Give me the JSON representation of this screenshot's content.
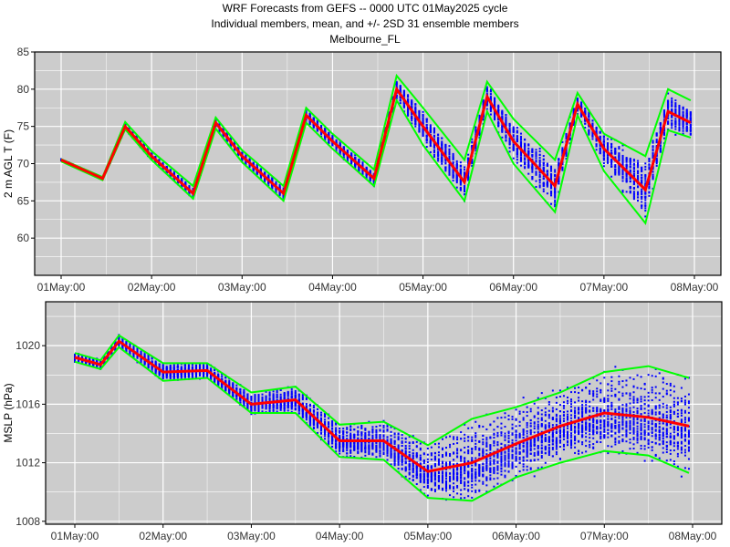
{
  "header": {
    "line1": "WRF Forecasts from GEFS --  0000 UTC 01May2025  cycle",
    "line2": "Individual members, mean, and +/- 2SD    31 ensemble members",
    "line3": "Melbourne_FL"
  },
  "colors": {
    "panel_bg": "#cccccc",
    "grid": "#ffffff",
    "members": "#0000ff",
    "mean": "#ff0000",
    "sd": "#00ff00"
  },
  "chart_data": [
    {
      "type": "line",
      "title": "",
      "xlabel": "",
      "ylabel": "2 m AGL T (F)",
      "x_ticks": [
        "01May:00",
        "02May:00",
        "03May:00",
        "04May:00",
        "05May:00",
        "06May:00",
        "07May:00",
        "08May:00"
      ],
      "y_ticks": [
        60,
        65,
        70,
        75,
        80,
        85
      ],
      "ylim": [
        55,
        85
      ],
      "grid": true,
      "member_count": 31,
      "times": [
        "01May:00",
        "01May:11",
        "01May:17",
        "02May:00",
        "02May:11",
        "02May:17",
        "03May:00",
        "03May:11",
        "03May:17",
        "04May:00",
        "04May:11",
        "04May:17",
        "05May:00",
        "05May:11",
        "05May:17",
        "06May:00",
        "06May:11",
        "06May:17",
        "07May:00",
        "07May:11",
        "07May:17",
        "07May:23"
      ],
      "series": [
        {
          "name": "",
          "role": "mean",
          "values": [
            70.5,
            68,
            75,
            71,
            66,
            75.5,
            71,
            66,
            76.5,
            73,
            68,
            80,
            75,
            67.5,
            79,
            73,
            67,
            78,
            72,
            66.5,
            77,
            75.5
          ]
        },
        {
          "name": "",
          "role": "upper",
          "values": [
            70.6,
            68.2,
            75.6,
            71.7,
            67,
            76.2,
            71.8,
            67,
            77.5,
            74,
            69.2,
            81.8,
            77.5,
            70.5,
            81,
            76,
            70.5,
            79.5,
            74,
            71,
            80,
            78.5
          ]
        },
        {
          "name": "",
          "role": "lower",
          "values": [
            70.3,
            67.8,
            74.6,
            70.5,
            65.3,
            74.7,
            70.2,
            65,
            75.5,
            72,
            67,
            78.5,
            72.5,
            65,
            77,
            70,
            63.5,
            76.5,
            69,
            62,
            74.5,
            73.5
          ]
        }
      ]
    },
    {
      "type": "line",
      "title": "",
      "xlabel": "",
      "ylabel": "MSLP (hPa)",
      "x_ticks": [
        "01May:00",
        "02May:00",
        "03May:00",
        "04May:00",
        "05May:00",
        "06May:00",
        "07May:00",
        "08May:00"
      ],
      "y_ticks": [
        1008,
        1012,
        1016,
        1020
      ],
      "ylim": [
        1007.8,
        1023
      ],
      "grid": true,
      "member_count": 31,
      "times": [
        "01May:00",
        "01May:07",
        "01May:12",
        "02May:00",
        "02May:12",
        "03May:00",
        "03May:12",
        "04May:00",
        "04May:12",
        "05May:00",
        "05May:12",
        "06May:00",
        "06May:12",
        "07May:00",
        "07May:12",
        "07May:23"
      ],
      "series": [
        {
          "name": "",
          "role": "mean",
          "values": [
            1019.2,
            1018.7,
            1020.3,
            1018.2,
            1018.3,
            1016,
            1016.3,
            1013.5,
            1013.5,
            1011.4,
            1012,
            1013.3,
            1014.5,
            1015.4,
            1015.1,
            1014.5
          ]
        },
        {
          "name": "",
          "role": "upper",
          "values": [
            1019.5,
            1019,
            1020.7,
            1018.8,
            1018.8,
            1016.8,
            1017.2,
            1014.6,
            1014.8,
            1013.2,
            1015,
            1015.8,
            1016.8,
            1018.2,
            1018.6,
            1017.8
          ]
        },
        {
          "name": "",
          "role": "lower",
          "values": [
            1018.9,
            1018.4,
            1019.9,
            1017.6,
            1017.8,
            1015.4,
            1015.4,
            1012.4,
            1012.2,
            1009.6,
            1009.4,
            1011,
            1012,
            1012.8,
            1012.5,
            1011.3
          ]
        }
      ]
    }
  ]
}
